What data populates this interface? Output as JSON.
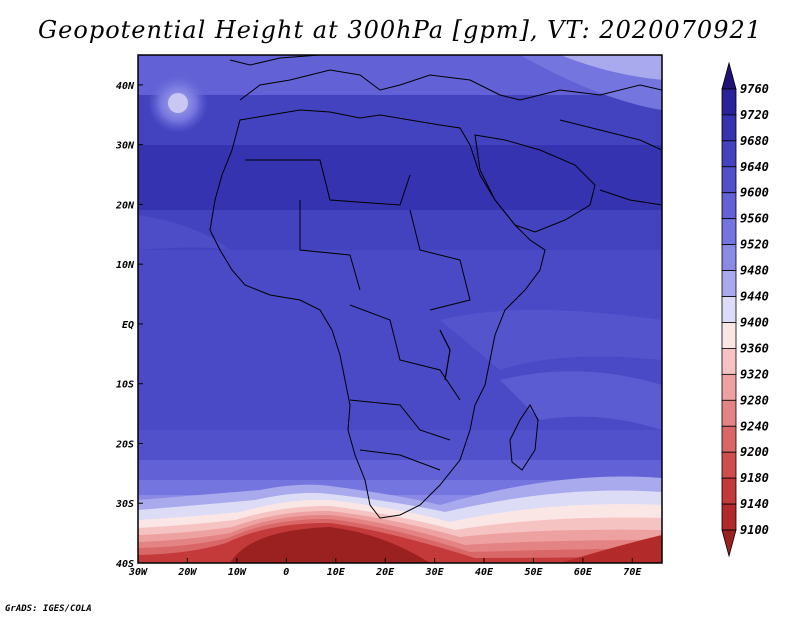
{
  "title": "Geopotential Height at 300hPa [gpm], VT: 2020070921",
  "credit": "GrADS: IGES/COLA",
  "map": {
    "lon_range": [
      -30,
      76
    ],
    "lat_range": [
      -40,
      45
    ],
    "lon_ticks": [
      {
        "value": -30,
        "label": "30W"
      },
      {
        "value": -20,
        "label": "20W"
      },
      {
        "value": -10,
        "label": "10W"
      },
      {
        "value": 0,
        "label": "0"
      },
      {
        "value": 10,
        "label": "10E"
      },
      {
        "value": 20,
        "label": "20E"
      },
      {
        "value": 30,
        "label": "30E"
      },
      {
        "value": 40,
        "label": "40E"
      },
      {
        "value": 50,
        "label": "50E"
      },
      {
        "value": 60,
        "label": "60E"
      },
      {
        "value": 70,
        "label": "70E"
      }
    ],
    "lat_ticks": [
      {
        "value": 40,
        "label": "40N"
      },
      {
        "value": 30,
        "label": "30N"
      },
      {
        "value": 20,
        "label": "20N"
      },
      {
        "value": 10,
        "label": "10N"
      },
      {
        "value": 0,
        "label": "EQ"
      },
      {
        "value": -10,
        "label": "10S"
      },
      {
        "value": -20,
        "label": "20S"
      },
      {
        "value": -30,
        "label": "30S"
      },
      {
        "value": -40,
        "label": "40S"
      }
    ]
  },
  "colorbar": {
    "levels": [
      9760,
      9720,
      9680,
      9640,
      9600,
      9560,
      9520,
      9480,
      9440,
      9400,
      9360,
      9320,
      9280,
      9240,
      9200,
      9180,
      9140,
      9100
    ],
    "colors": [
      "#1e1278",
      "#2a229a",
      "#3533b0",
      "#4343c0",
      "#5151cc",
      "#6262d6",
      "#7575df",
      "#8a8ae6",
      "#a9a9ee",
      "#dcdcf6",
      "#fbe6e6",
      "#f6c3c3",
      "#eea1a1",
      "#e48383",
      "#da6767",
      "#d04d4d",
      "#c43939",
      "#b32a2a",
      "#9b2020"
    ]
  }
}
